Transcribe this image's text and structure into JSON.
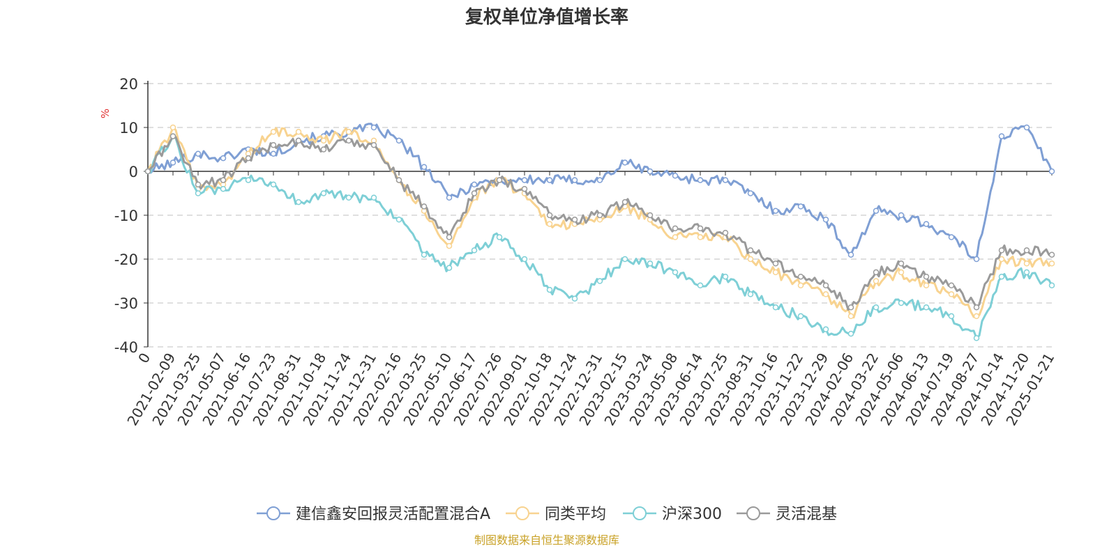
{
  "chart_data": {
    "type": "line",
    "title": "复权单位净值增长率",
    "ylabel": "%",
    "ylim": [
      -40,
      20
    ],
    "yticks": [
      20,
      10,
      0,
      -10,
      -20,
      -30,
      -40
    ],
    "grid": true,
    "legend_position": "bottom",
    "source_note": "制图数据来自恒生聚源数据库",
    "categories": [
      "0",
      "2021-02-09",
      "2021-03-25",
      "2021-05-07",
      "2021-06-16",
      "2021-07-23",
      "2021-08-31",
      "2021-10-18",
      "2021-11-24",
      "2021-12-31",
      "2022-02-16",
      "2022-03-25",
      "2022-05-10",
      "2022-06-17",
      "2022-07-26",
      "2022-09-01",
      "2022-10-18",
      "2022-11-24",
      "2022-12-31",
      "2023-02-15",
      "2023-03-24",
      "2023-05-08",
      "2023-06-14",
      "2023-07-25",
      "2023-08-31",
      "2023-10-16",
      "2023-11-22",
      "2023-12-29",
      "2024-02-06",
      "2024-03-22",
      "2024-05-06",
      "2024-06-13",
      "2024-07-19",
      "2024-08-27",
      "2024-10-14",
      "2024-11-20",
      "2025-01-21"
    ],
    "series": [
      {
        "name": "建信鑫安回报灵活配置混合A",
        "color": "#7f9fd4",
        "values": [
          0,
          2,
          4,
          3,
          5,
          4,
          7,
          8,
          9,
          10,
          7,
          1,
          -6,
          -3,
          -2,
          -2,
          -2,
          -2,
          -2,
          2,
          0,
          -1,
          -2,
          -2,
          -5,
          -9,
          -8,
          -11,
          -19,
          -9,
          -10,
          -12,
          -15,
          -20,
          8,
          10,
          0
        ]
      },
      {
        "name": "同类平均",
        "color": "#f8d390",
        "values": [
          0,
          10,
          -4,
          -3,
          4,
          9,
          9,
          7,
          9,
          7,
          -2,
          -9,
          -17,
          -6,
          -2,
          -5,
          -12,
          -12,
          -11,
          -8,
          -11,
          -15,
          -15,
          -15,
          -20,
          -23,
          -26,
          -28,
          -33,
          -25,
          -23,
          -26,
          -28,
          -33,
          -20,
          -21,
          -21
        ]
      },
      {
        "name": "沪深300",
        "color": "#7ecfd6",
        "values": [
          0,
          8,
          -5,
          -4,
          -2,
          -3,
          -7,
          -5,
          -6,
          -6,
          -11,
          -19,
          -22,
          -18,
          -15,
          -20,
          -27,
          -29,
          -25,
          -20,
          -21,
          -23,
          -26,
          -24,
          -28,
          -31,
          -33,
          -36,
          -37,
          -31,
          -30,
          -31,
          -33,
          -38,
          -24,
          -23,
          -26
        ]
      },
      {
        "name": "灵活混基",
        "color": "#9a9a9a",
        "values": [
          0,
          8,
          -3,
          -2,
          3,
          6,
          7,
          5,
          7,
          6,
          -2,
          -8,
          -15,
          -5,
          -2,
          -4,
          -10,
          -11,
          -10,
          -7,
          -10,
          -13,
          -13,
          -14,
          -18,
          -21,
          -24,
          -26,
          -31,
          -23,
          -21,
          -24,
          -26,
          -31,
          -18,
          -18,
          -19
        ]
      }
    ]
  }
}
